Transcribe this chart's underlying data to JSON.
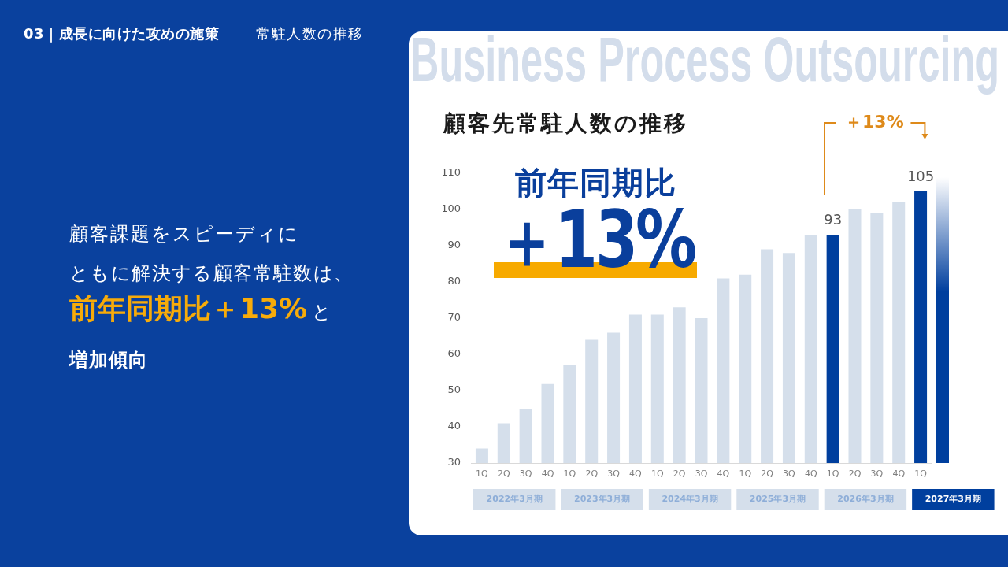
{
  "chart_data": {
    "type": "bar",
    "title": "顧客先常駐人数の推移",
    "categories": [
      "1Q",
      "2Q",
      "3Q",
      "4Q",
      "1Q",
      "2Q",
      "3Q",
      "4Q",
      "1Q",
      "2Q",
      "3Q",
      "4Q",
      "1Q",
      "2Q",
      "3Q",
      "4Q",
      "1Q",
      "2Q",
      "3Q",
      "4Q",
      "1Q"
    ],
    "values": [
      34,
      41,
      45,
      52,
      57,
      64,
      66,
      71,
      71,
      73,
      70,
      81,
      82,
      89,
      88,
      93,
      93,
      100,
      99,
      102,
      105
    ],
    "colors": [
      "#d5dfeb",
      "#d5dfeb",
      "#d5dfeb",
      "#d5dfeb",
      "#d5dfeb",
      "#d5dfeb",
      "#d5dfeb",
      "#d5dfeb",
      "#d5dfeb",
      "#d5dfeb",
      "#d5dfeb",
      "#d5dfeb",
      "#d5dfeb",
      "#d5dfeb",
      "#d5dfeb",
      "#d5dfeb",
      "#003f9e",
      "#d5dfeb",
      "#d5dfeb",
      "#d5dfeb",
      "#003f9e"
    ],
    "value_labels": [
      null,
      null,
      null,
      null,
      null,
      null,
      null,
      null,
      null,
      null,
      null,
      null,
      null,
      null,
      null,
      null,
      "93",
      null,
      null,
      null,
      "105"
    ],
    "ylim": [
      30,
      110
    ],
    "yticks": [
      30,
      40,
      50,
      60,
      70,
      80,
      90,
      100,
      110
    ],
    "annotations": [
      "03｜成長に向けた攻めの施策",
      "常駐人数の推移",
      "Business Process Outsourcing",
      "前年同期比",
      "＋13%",
      "＋13%",
      "顧客課題をスピーディに",
      "ともに解決する顧客常駐数は、",
      "前年同期比＋13%",
      "と",
      "増加傾向",
      "2022年3月期",
      "2023年3月期",
      "2024年3月期",
      "2025年3月期",
      "2026年3月期",
      "2027年3月期"
    ]
  }
}
